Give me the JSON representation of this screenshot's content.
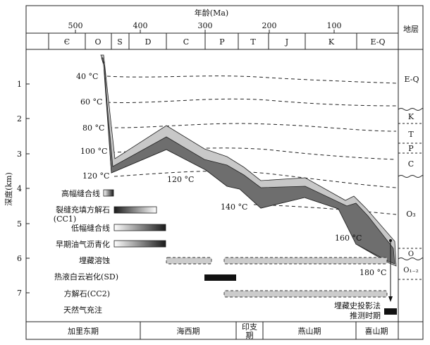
{
  "top_axis": {
    "title": "年龄(Ma)",
    "ticks": [
      {
        "age": 500,
        "label": "500"
      },
      {
        "age": 400,
        "label": "400"
      },
      {
        "age": 300,
        "label": "300"
      },
      {
        "age": 200,
        "label": "200"
      },
      {
        "age": 100,
        "label": "100"
      }
    ],
    "periods": [
      {
        "label": "Є",
        "start": 541,
        "end": 485
      },
      {
        "label": "O",
        "start": 485,
        "end": 444
      },
      {
        "label": "S",
        "start": 444,
        "end": 419
      },
      {
        "label": "D",
        "start": 419,
        "end": 359
      },
      {
        "label": "C",
        "start": 359,
        "end": 299
      },
      {
        "label": "P",
        "start": 299,
        "end": 252
      },
      {
        "label": "T",
        "start": 252,
        "end": 201
      },
      {
        "label": "J",
        "start": 201,
        "end": 145
      },
      {
        "label": "K",
        "start": 145,
        "end": 66
      },
      {
        "label": "E-Q",
        "start": 66,
        "end": 0
      }
    ]
  },
  "left_axis": {
    "title": "深度(km)",
    "ticks": [
      1,
      2,
      3,
      4,
      5,
      6,
      7
    ]
  },
  "strata_column": {
    "title": "地层",
    "labels": [
      {
        "label": "E-Q",
        "depth": 0.9
      },
      {
        "label": "K",
        "depth": 1.95
      },
      {
        "label": "T",
        "depth": 2.45
      },
      {
        "label": "P",
        "depth": 2.85
      },
      {
        "label": "C",
        "depth": 3.3
      },
      {
        "label": "O₃",
        "depth": 5.0
      },
      {
        "label": "O",
        "depth": 5.85
      },
      {
        "label": "O₁₋₂",
        "depth": 6.35
      }
    ],
    "boundaries": [
      {
        "depth": 1.75,
        "style": "wavy"
      },
      {
        "depth": 2.15,
        "style": "dashed"
      },
      {
        "depth": 2.75,
        "style": "dashed"
      },
      {
        "depth": 3.0,
        "style": "dashed"
      },
      {
        "depth": 3.65,
        "style": "wavy"
      },
      {
        "depth": 5.75,
        "style": "dashed"
      },
      {
        "depth": 6.05,
        "style": "wavy"
      },
      {
        "depth": 6.6,
        "style": "dashed"
      }
    ]
  },
  "isotherms": [
    {
      "label": "40 °C"
    },
    {
      "label": "60 °C"
    },
    {
      "label": "80 °C"
    },
    {
      "label": "100 °C"
    },
    {
      "label": "120 °C"
    },
    {
      "label": "120 °C"
    },
    {
      "label": "140 °C"
    },
    {
      "label": "160 °C"
    },
    {
      "label": "180 °C"
    }
  ],
  "events": [
    {
      "label": "高幅缝合线"
    },
    {
      "label": "裂缝充填方解石"
    },
    {
      "label": "(CC1)"
    },
    {
      "label": "低幅缝合线"
    },
    {
      "label": "早期油气沥青化"
    },
    {
      "label": "埋藏溶蚀"
    },
    {
      "label": "热液白云岩化(SD)"
    },
    {
      "label": "方解石(CC2)"
    },
    {
      "label": "天然气充注"
    }
  ],
  "annotation": {
    "line1": "埋藏史投影法",
    "line2": "推测时期"
  },
  "orogenies": [
    {
      "label": "加里东期"
    },
    {
      "label": "海西期"
    },
    {
      "label": "印支",
      "label2": "期"
    },
    {
      "label": "燕山期"
    },
    {
      "label": "喜山期"
    }
  ],
  "colors": {
    "burial_outer": "#c8c8c8",
    "burial_inner": "#6e6e6e",
    "dashed_bar_fill": "#cccccc",
    "solid_bar_fill": "#111111",
    "line": "#222222"
  }
}
